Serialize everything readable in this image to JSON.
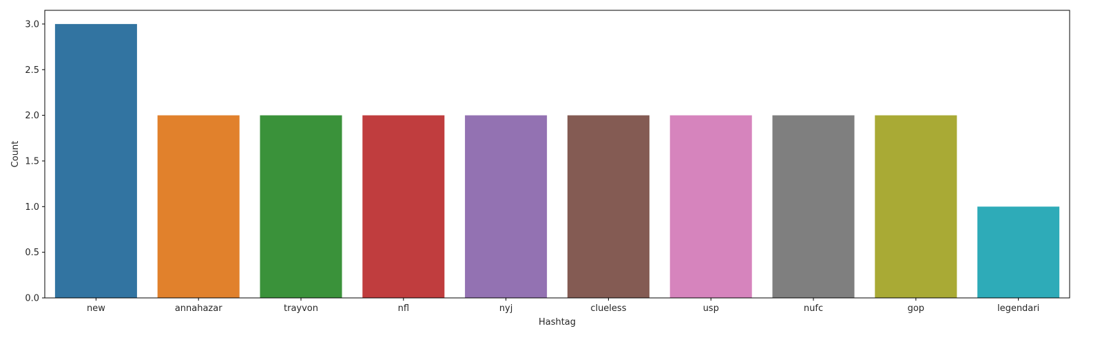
{
  "chart_data": {
    "type": "bar",
    "categories": [
      "new",
      "annahazar",
      "trayvon",
      "nfl",
      "nyj",
      "clueless",
      "usp",
      "nufc",
      "gop",
      "legendari"
    ],
    "values": [
      3,
      2,
      2,
      2,
      2,
      2,
      2,
      2,
      2,
      1
    ],
    "colors": [
      "#3274a1",
      "#e1812c",
      "#3a923a",
      "#c03d3e",
      "#9372b2",
      "#845b53",
      "#d684bd",
      "#7f7f7f",
      "#a9aa35",
      "#2eabb8"
    ],
    "xlabel": "Hashtag",
    "ylabel": "Count",
    "ylim": [
      0,
      3.15
    ],
    "yticks": [
      0.0,
      0.5,
      1.0,
      1.5,
      2.0,
      2.5,
      3.0
    ],
    "ytick_labels": [
      "0.0",
      "0.5",
      "1.0",
      "1.5",
      "2.0",
      "2.5",
      "3.0"
    ],
    "grid": false,
    "legend": "none"
  }
}
